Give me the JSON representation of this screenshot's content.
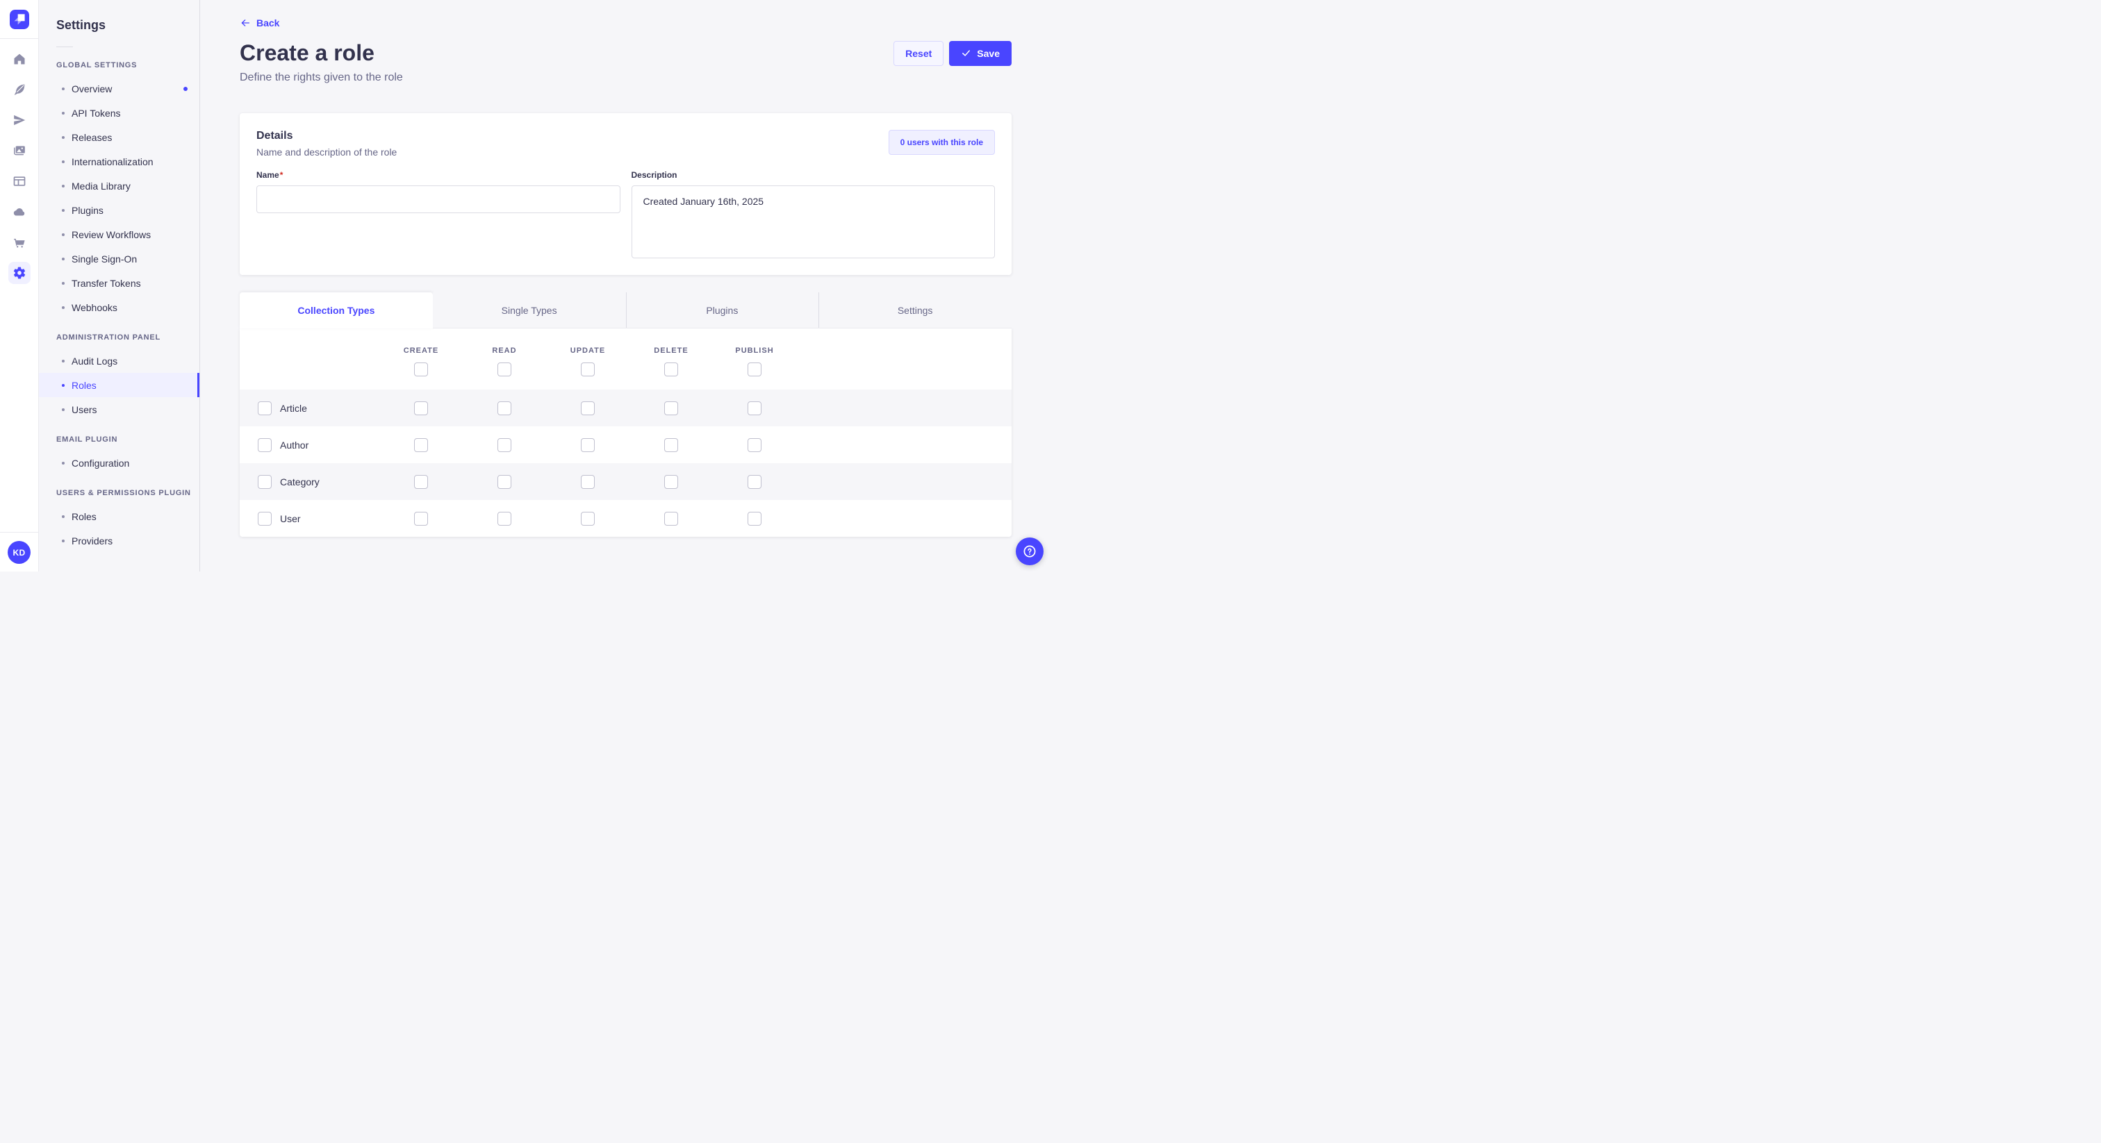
{
  "rail": {
    "icons": [
      {
        "icon": "home",
        "active": false
      },
      {
        "icon": "feather",
        "active": false
      },
      {
        "icon": "paper-plane",
        "active": false
      },
      {
        "icon": "media",
        "active": false
      },
      {
        "icon": "layout",
        "active": false
      },
      {
        "icon": "cloud",
        "active": false
      },
      {
        "icon": "cart",
        "active": false
      },
      {
        "icon": "gear",
        "active": true
      }
    ],
    "avatar_initials": "KD"
  },
  "sidebar": {
    "title": "Settings",
    "sections": [
      {
        "label": "GLOBAL SETTINGS",
        "items": [
          {
            "label": "Overview",
            "notification": true
          },
          {
            "label": "API Tokens"
          },
          {
            "label": "Releases"
          },
          {
            "label": "Internationalization"
          },
          {
            "label": "Media Library"
          },
          {
            "label": "Plugins"
          },
          {
            "label": "Review Workflows"
          },
          {
            "label": "Single Sign-On"
          },
          {
            "label": "Transfer Tokens"
          },
          {
            "label": "Webhooks"
          }
        ]
      },
      {
        "label": "ADMINISTRATION PANEL",
        "items": [
          {
            "label": "Audit Logs"
          },
          {
            "label": "Roles",
            "active": true
          },
          {
            "label": "Users"
          }
        ]
      },
      {
        "label": "EMAIL PLUGIN",
        "items": [
          {
            "label": "Configuration"
          }
        ]
      },
      {
        "label": "USERS & PERMISSIONS PLUGIN",
        "items": [
          {
            "label": "Roles"
          },
          {
            "label": "Providers"
          }
        ]
      }
    ]
  },
  "header": {
    "back_label": "Back",
    "title": "Create a role",
    "subtitle": "Define the rights given to the role",
    "reset_label": "Reset",
    "save_label": "Save"
  },
  "details": {
    "title": "Details",
    "subtitle": "Name and description of the role",
    "users_count_label": "0 users with this role",
    "name_label": "Name",
    "required_mark": "*",
    "name_value": "",
    "name_placeholder": "",
    "description_label": "Description",
    "description_value": "Created January 16th, 2025"
  },
  "permissions": {
    "tabs": [
      {
        "label": "Collection Types",
        "active": true
      },
      {
        "label": "Single Types",
        "active": false
      },
      {
        "label": "Plugins",
        "active": false
      },
      {
        "label": "Settings",
        "active": false
      }
    ],
    "columns": [
      "CREATE",
      "READ",
      "UPDATE",
      "DELETE",
      "PUBLISH"
    ],
    "select_all_checked": [
      false,
      false,
      false,
      false,
      false
    ],
    "rows": [
      {
        "label": "Article",
        "row_checked": false,
        "cells": [
          false,
          false,
          false,
          false,
          false
        ]
      },
      {
        "label": "Author",
        "row_checked": false,
        "cells": [
          false,
          false,
          false,
          false,
          false
        ]
      },
      {
        "label": "Category",
        "row_checked": false,
        "cells": [
          false,
          false,
          false,
          false,
          false
        ]
      },
      {
        "label": "User",
        "row_checked": false,
        "cells": [
          false,
          false,
          false,
          false,
          false
        ]
      }
    ]
  },
  "colors": {
    "primary": "#4945FF",
    "primary_light": "#F0F0FF",
    "primary_border": "#D9D8FF",
    "page_bg": "#F6F6F9",
    "text": "#32324D",
    "text_muted": "#666687",
    "border": "#DCDCE4",
    "checkbox_border": "#C0C0CF",
    "danger": "#D02B20"
  }
}
